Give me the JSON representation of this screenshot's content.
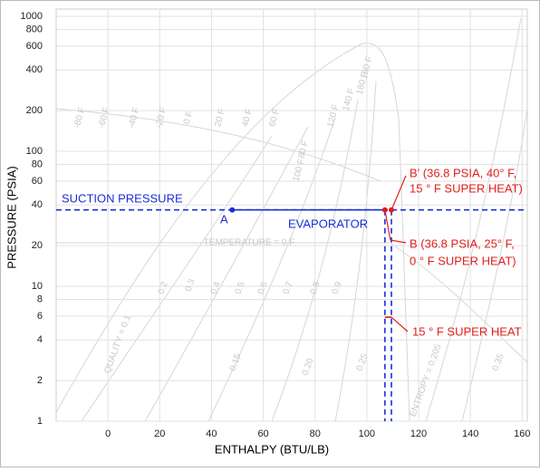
{
  "chart_data": {
    "type": "line",
    "x_label": "ENTHALPY (BTU/LB)",
    "y_label": "PRESSURE (PSIA)",
    "log_y": true,
    "grid": true,
    "xlim": [
      -20,
      162
    ],
    "ylim": [
      1,
      1000
    ],
    "xticks": [
      0,
      20,
      40,
      60,
      80,
      100,
      120,
      140,
      160
    ],
    "yticks": [
      1,
      2,
      4,
      6,
      8,
      10,
      20,
      40,
      60,
      80,
      100,
      200,
      400,
      600,
      800,
      1000
    ],
    "series": [
      {
        "name": "SUCTION PRESSURE",
        "color": "#1a2fd6",
        "dashed": true,
        "x": [
          -20,
          162
        ],
        "y": [
          36.8,
          36.8
        ]
      },
      {
        "name": "EVAPORATOR",
        "color": "#1a2fd6",
        "dashed": false,
        "x": [
          48,
          107.5
        ],
        "y": [
          36.8,
          36.8
        ]
      }
    ],
    "guides": [
      {
        "color": "#1a2fd6",
        "x": [
          107,
          107
        ],
        "y": [
          36.8,
          1
        ]
      },
      {
        "color": "#1a2fd6",
        "x": [
          109.5,
          109.5
        ],
        "y": [
          36.8,
          1
        ]
      },
      {
        "color": "#e0201b",
        "x": [
          107,
          109.5
        ],
        "y": [
          5.9,
          5.9
        ]
      }
    ],
    "points": [
      {
        "label_lines": [
          "A"
        ],
        "x": 48,
        "y": 36.8,
        "color": "#1a2fd6"
      },
      {
        "label_lines": [
          "B' (36.8 PSIA, 40° F,",
          "15 ° F SUPER HEAT)"
        ],
        "x": 109.5,
        "y": 36.8,
        "color": "#e0201b"
      },
      {
        "label_lines": [
          "B (36.8 PSIA, 25° F,",
          "0 ° F SUPER HEAT)"
        ],
        "x": 107,
        "y": 36.8,
        "color": "#e0201b"
      }
    ],
    "superheat_label": "15 ° F SUPER HEAT",
    "background_labels": [
      "-80 F",
      "-60 F",
      "-40 F",
      "-20 F",
      "0 F",
      "20 F",
      "40 F",
      "60 F",
      "80 F",
      "100 F",
      "120 F",
      "140 F",
      "160 F",
      "180 F",
      "TEMPERATURE = 0 F",
      "QUALITY = 0.1",
      "0.2",
      "0.3",
      "0.4",
      "0.5",
      "0.6",
      "0.7",
      "0.8",
      "0.9",
      "ENTROPY = 0.205",
      "0.15",
      "0.20",
      "0.25",
      "0.35"
    ]
  }
}
